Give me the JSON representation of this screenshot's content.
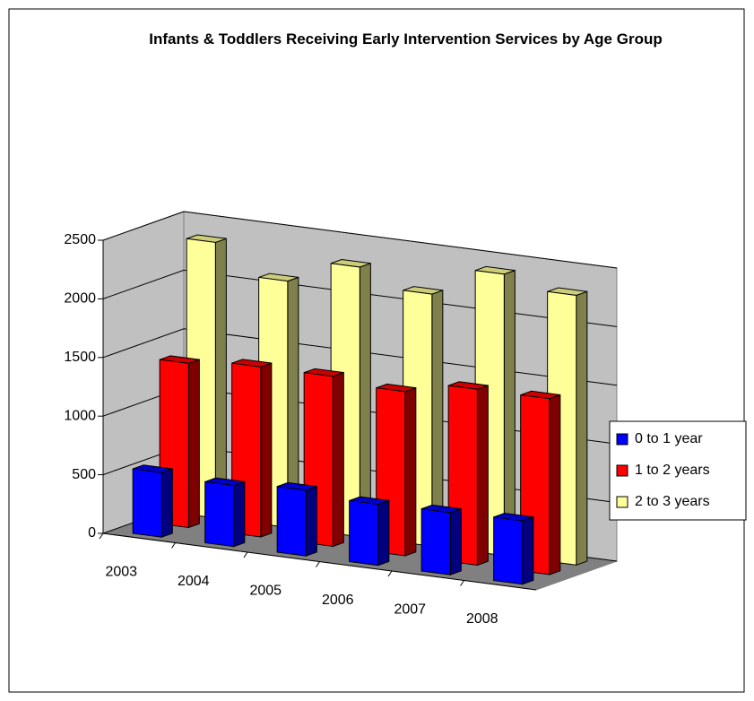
{
  "chart_data": {
    "type": "bar3d",
    "title": "Infants & Toddlers Receiving Early Intervention Services by Age Group",
    "categories": [
      "2003",
      "2004",
      "2005",
      "2006",
      "2007",
      "2008"
    ],
    "series": [
      {
        "name": "0 to 1 year",
        "color": "#0000ff",
        "values": [
          550,
          520,
          560,
          520,
          530,
          540
        ]
      },
      {
        "name": "1 to 2 years",
        "color": "#ff0000",
        "values": [
          1400,
          1450,
          1450,
          1400,
          1500,
          1500
        ]
      },
      {
        "name": "2 to 3 years",
        "color": "#ffff99",
        "values": [
          2350,
          2100,
          2300,
          2150,
          2400,
          2300
        ]
      }
    ],
    "ylim": [
      0,
      2500
    ],
    "yticks": [
      0,
      500,
      1000,
      1500,
      2000,
      2500
    ],
    "grid": true,
    "legend": "right"
  }
}
